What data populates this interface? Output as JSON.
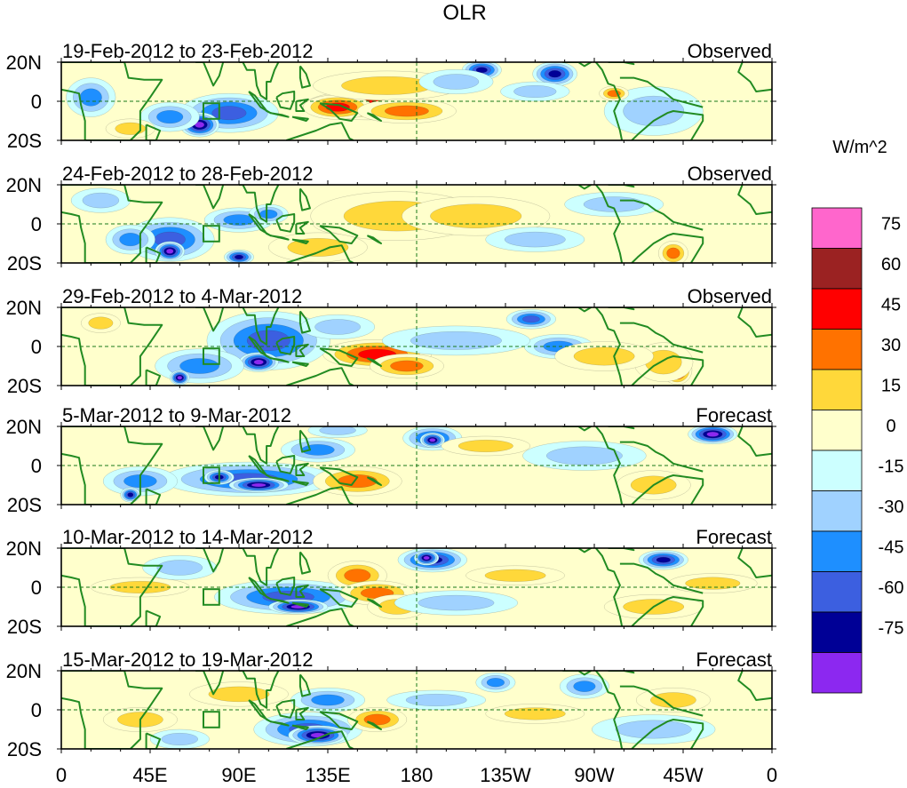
{
  "chart_data": {
    "type": "heatmap",
    "title": "OLR",
    "units_label": "W/m^2",
    "x_ticks": [
      "0",
      "45E",
      "90E",
      "135E",
      "180",
      "135W",
      "90W",
      "45W",
      "0"
    ],
    "x_tick_lon": [
      0,
      45,
      90,
      135,
      180,
      225,
      270,
      315,
      360
    ],
    "y_ticks": [
      "20N",
      "0",
      "20S"
    ],
    "y_tick_lat": [
      20,
      0,
      -20
    ],
    "lon_range": [
      0,
      360
    ],
    "lat_range": [
      -20,
      20
    ],
    "contour_levels": [
      -75,
      -60,
      -45,
      -30,
      -15,
      0,
      15,
      30,
      45,
      60,
      75
    ],
    "colorbar_labels": [
      "75",
      "60",
      "45",
      "30",
      "15",
      "0",
      "-15",
      "-30",
      "-45",
      "-60",
      "-75"
    ],
    "colors": [
      "#ff66cc",
      "#9b2222",
      "#ff0000",
      "#ff7200",
      "#ffd83a",
      "#ffffcc",
      "#ccffff",
      "#a0d2ff",
      "#1e8fff",
      "#3c5fe0",
      "#000096",
      "#8c28f0"
    ],
    "coastline_color": "#228b22",
    "panels": [
      {
        "date_range": "19-Feb-2012 to 23-Feb-2012",
        "label": "Observed",
        "blobs": [
          {
            "lon": 155,
            "lat": -2,
            "rx": 25,
            "ry": 6,
            "v": 50
          },
          {
            "lon": 140,
            "lat": -3,
            "rx": 14,
            "ry": 5,
            "v": 55
          },
          {
            "lon": 165,
            "lat": 8,
            "rx": 30,
            "ry": 6,
            "v": 22
          },
          {
            "lon": 175,
            "lat": -5,
            "rx": 20,
            "ry": 5,
            "v": 32
          },
          {
            "lon": 85,
            "lat": -6,
            "rx": 20,
            "ry": 8,
            "v": -55
          },
          {
            "lon": 70,
            "lat": -12,
            "rx": 8,
            "ry": 5,
            "v": -80
          },
          {
            "lon": 55,
            "lat": -8,
            "rx": 12,
            "ry": 6,
            "v": -38
          },
          {
            "lon": 15,
            "lat": 2,
            "rx": 10,
            "ry": 8,
            "v": -35
          },
          {
            "lon": 213,
            "lat": 16,
            "rx": 8,
            "ry": 4,
            "v": -72
          },
          {
            "lon": 250,
            "lat": 14,
            "rx": 9,
            "ry": 5,
            "v": -70
          },
          {
            "lon": 240,
            "lat": 5,
            "rx": 14,
            "ry": 4,
            "v": -25
          },
          {
            "lon": 300,
            "lat": -5,
            "rx": 20,
            "ry": 10,
            "v": -25
          },
          {
            "lon": 200,
            "lat": 10,
            "rx": 15,
            "ry": 5,
            "v": -20
          },
          {
            "lon": 35,
            "lat": -14,
            "rx": 10,
            "ry": 4,
            "v": 25
          },
          {
            "lon": 280,
            "lat": 4,
            "rx": 6,
            "ry": 3,
            "v": 30
          }
        ]
      },
      {
        "date_range": "24-Feb-2012 to 28-Feb-2012",
        "label": "Observed",
        "blobs": [
          {
            "lon": 165,
            "lat": 0,
            "rx": 30,
            "ry": 6,
            "v": 58
          },
          {
            "lon": 170,
            "lat": 4,
            "rx": 35,
            "ry": 10,
            "v": 28
          },
          {
            "lon": 210,
            "lat": 4,
            "rx": 30,
            "ry": 8,
            "v": 15
          },
          {
            "lon": 55,
            "lat": -8,
            "rx": 18,
            "ry": 9,
            "v": -50
          },
          {
            "lon": 55,
            "lat": -14,
            "rx": 6,
            "ry": 4,
            "v": -85
          },
          {
            "lon": 35,
            "lat": -8,
            "rx": 10,
            "ry": 6,
            "v": -30
          },
          {
            "lon": 90,
            "lat": 2,
            "rx": 14,
            "ry": 5,
            "v": -40
          },
          {
            "lon": 105,
            "lat": 5,
            "rx": 8,
            "ry": 4,
            "v": -30
          },
          {
            "lon": 90,
            "lat": -17,
            "rx": 6,
            "ry": 3,
            "v": -70
          },
          {
            "lon": 130,
            "lat": -12,
            "rx": 20,
            "ry": 6,
            "v": 18
          },
          {
            "lon": 310,
            "lat": -15,
            "rx": 6,
            "ry": 5,
            "v": 40
          },
          {
            "lon": 280,
            "lat": 10,
            "rx": 20,
            "ry": 5,
            "v": -18
          },
          {
            "lon": 240,
            "lat": -8,
            "rx": 20,
            "ry": 5,
            "v": -18
          },
          {
            "lon": 20,
            "lat": 12,
            "rx": 12,
            "ry": 5,
            "v": -15
          }
        ]
      },
      {
        "date_range": "29-Feb-2012 to 4-Mar-2012",
        "label": "Observed",
        "blobs": [
          {
            "lon": 160,
            "lat": -4,
            "rx": 22,
            "ry": 6,
            "v": 45
          },
          {
            "lon": 175,
            "lat": -10,
            "rx": 15,
            "ry": 5,
            "v": 30
          },
          {
            "lon": 105,
            "lat": 3,
            "rx": 25,
            "ry": 12,
            "v": -48
          },
          {
            "lon": 100,
            "lat": -8,
            "rx": 8,
            "ry": 4,
            "v": -75
          },
          {
            "lon": 70,
            "lat": -10,
            "rx": 18,
            "ry": 7,
            "v": -40
          },
          {
            "lon": 60,
            "lat": -16,
            "rx": 4,
            "ry": 3,
            "v": -85
          },
          {
            "lon": 238,
            "lat": 14,
            "rx": 10,
            "ry": 4,
            "v": -50
          },
          {
            "lon": 252,
            "lat": 0,
            "rx": 14,
            "ry": 5,
            "v": -35
          },
          {
            "lon": 312,
            "lat": -12,
            "rx": 6,
            "ry": 6,
            "v": 62
          },
          {
            "lon": 305,
            "lat": -8,
            "rx": 12,
            "ry": 8,
            "v": 28
          },
          {
            "lon": 200,
            "lat": 3,
            "rx": 30,
            "ry": 6,
            "v": -20
          },
          {
            "lon": 20,
            "lat": 12,
            "rx": 8,
            "ry": 4,
            "v": 22
          },
          {
            "lon": 275,
            "lat": -5,
            "rx": 20,
            "ry": 6,
            "v": 15
          },
          {
            "lon": 140,
            "lat": 10,
            "rx": 15,
            "ry": 5,
            "v": -25
          }
        ]
      },
      {
        "date_range": "5-Mar-2012 to 9-Mar-2012",
        "label": "Forecast",
        "blobs": [
          {
            "lon": 95,
            "lat": -7,
            "rx": 35,
            "ry": 7,
            "v": -58
          },
          {
            "lon": 100,
            "lat": -10,
            "rx": 12,
            "ry": 3,
            "v": -80
          },
          {
            "lon": 80,
            "lat": -6,
            "rx": 6,
            "ry": 3,
            "v": -72
          },
          {
            "lon": 188,
            "lat": 14,
            "rx": 12,
            "ry": 5,
            "v": -58
          },
          {
            "lon": 188,
            "lat": 13,
            "rx": 5,
            "ry": 3,
            "v": -85
          },
          {
            "lon": 330,
            "lat": 16,
            "rx": 10,
            "ry": 4,
            "v": -78
          },
          {
            "lon": 150,
            "lat": -8,
            "rx": 18,
            "ry": 6,
            "v": 38
          },
          {
            "lon": 215,
            "lat": 10,
            "rx": 18,
            "ry": 4,
            "v": 20
          },
          {
            "lon": 40,
            "lat": -8,
            "rx": 15,
            "ry": 6,
            "v": -35
          },
          {
            "lon": 35,
            "lat": -15,
            "rx": 4,
            "ry": 3,
            "v": -70
          },
          {
            "lon": 300,
            "lat": -10,
            "rx": 15,
            "ry": 6,
            "v": 20
          },
          {
            "lon": 265,
            "lat": 5,
            "rx": 25,
            "ry": 6,
            "v": -20
          },
          {
            "lon": 130,
            "lat": 8,
            "rx": 15,
            "ry": 5,
            "v": -30
          },
          {
            "lon": 140,
            "lat": 18,
            "rx": 12,
            "ry": 3,
            "v": -15
          }
        ]
      },
      {
        "date_range": "10-Mar-2012 to 14-Mar-2012",
        "label": "Forecast",
        "blobs": [
          {
            "lon": 115,
            "lat": -5,
            "rx": 30,
            "ry": 7,
            "v": -55
          },
          {
            "lon": 120,
            "lat": -10,
            "rx": 12,
            "ry": 3,
            "v": -80
          },
          {
            "lon": 188,
            "lat": 14,
            "rx": 14,
            "ry": 5,
            "v": -60
          },
          {
            "lon": 185,
            "lat": 15,
            "rx": 5,
            "ry": 3,
            "v": -85
          },
          {
            "lon": 150,
            "lat": 6,
            "rx": 12,
            "ry": 6,
            "v": 35
          },
          {
            "lon": 160,
            "lat": -3,
            "rx": 15,
            "ry": 5,
            "v": 40
          },
          {
            "lon": 170,
            "lat": -10,
            "rx": 12,
            "ry": 5,
            "v": 22
          },
          {
            "lon": 305,
            "lat": 14,
            "rx": 10,
            "ry": 4,
            "v": -65
          },
          {
            "lon": 200,
            "lat": -8,
            "rx": 25,
            "ry": 5,
            "v": -22
          },
          {
            "lon": 40,
            "lat": 0,
            "rx": 20,
            "ry": 4,
            "v": 20
          },
          {
            "lon": 230,
            "lat": 6,
            "rx": 20,
            "ry": 4,
            "v": 18
          },
          {
            "lon": 60,
            "lat": 10,
            "rx": 15,
            "ry": 5,
            "v": -20
          },
          {
            "lon": 300,
            "lat": -10,
            "rx": 20,
            "ry": 5,
            "v": 18
          },
          {
            "lon": 330,
            "lat": 2,
            "rx": 18,
            "ry": 4,
            "v": 15
          }
        ]
      },
      {
        "date_range": "15-Mar-2012 to 19-Mar-2012",
        "label": "Forecast",
        "blobs": [
          {
            "lon": 125,
            "lat": -10,
            "rx": 22,
            "ry": 7,
            "v": -55
          },
          {
            "lon": 130,
            "lat": -13,
            "rx": 12,
            "ry": 4,
            "v": -88
          },
          {
            "lon": 160,
            "lat": -5,
            "rx": 12,
            "ry": 5,
            "v": 35
          },
          {
            "lon": 135,
            "lat": 5,
            "rx": 15,
            "ry": 5,
            "v": -30
          },
          {
            "lon": 220,
            "lat": 14,
            "rx": 8,
            "ry": 4,
            "v": -40
          },
          {
            "lon": 265,
            "lat": 12,
            "rx": 10,
            "ry": 5,
            "v": -30
          },
          {
            "lon": 90,
            "lat": 8,
            "rx": 20,
            "ry": 5,
            "v": 15
          },
          {
            "lon": 190,
            "lat": 5,
            "rx": 20,
            "ry": 4,
            "v": -18
          },
          {
            "lon": 40,
            "lat": -5,
            "rx": 15,
            "ry": 5,
            "v": 18
          },
          {
            "lon": 300,
            "lat": -10,
            "rx": 25,
            "ry": 6,
            "v": -20
          },
          {
            "lon": 310,
            "lat": 5,
            "rx": 15,
            "ry": 5,
            "v": 15
          },
          {
            "lon": 60,
            "lat": -15,
            "rx": 12,
            "ry": 4,
            "v": -20
          },
          {
            "lon": 240,
            "lat": -2,
            "rx": 20,
            "ry": 4,
            "v": 15
          }
        ]
      }
    ]
  }
}
